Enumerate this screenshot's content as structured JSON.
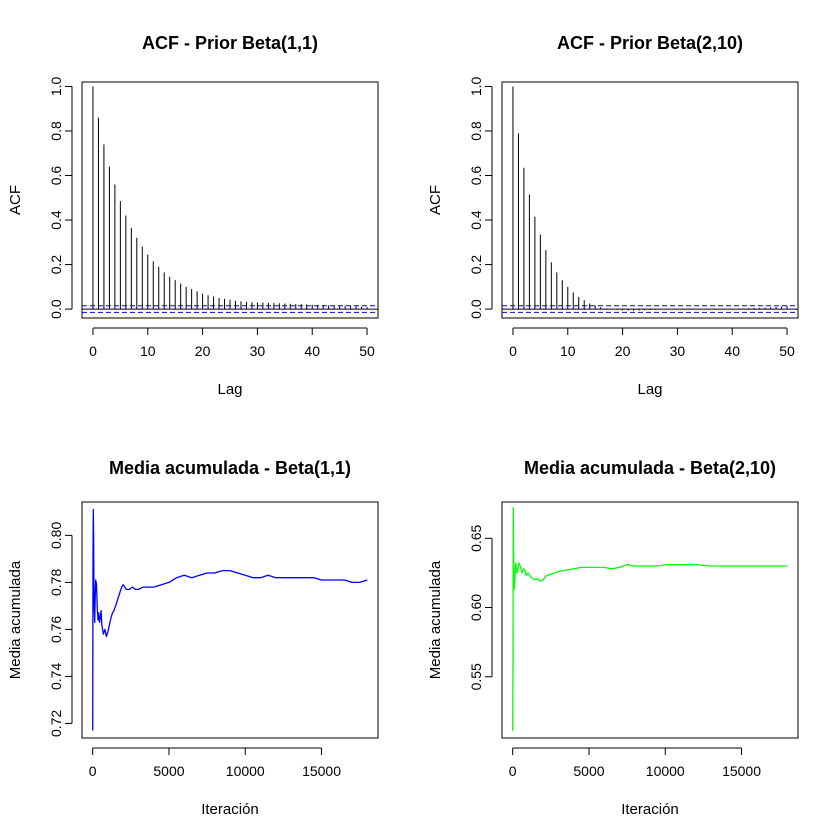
{
  "chart_data": [
    {
      "type": "bar",
      "title": "ACF - Prior Beta(1,1)",
      "xlabel": "Lag",
      "ylabel": "ACF",
      "xlim": [
        -2,
        52
      ],
      "ylim": [
        -0.04,
        1.02
      ],
      "xticks": [
        0,
        10,
        20,
        30,
        40,
        50
      ],
      "yticks": [
        0.0,
        0.2,
        0.4,
        0.6,
        0.8,
        1.0
      ],
      "ytick_labels": [
        "0.0",
        "0.2",
        "0.4",
        "0.6",
        "0.8",
        "1.0"
      ],
      "confidence_bound": 0.015,
      "bound_color": "#0000ff",
      "bar_color": "#000000",
      "lags": [
        0,
        1,
        2,
        3,
        4,
        5,
        6,
        7,
        8,
        9,
        10,
        11,
        12,
        13,
        14,
        15,
        16,
        17,
        18,
        19,
        20,
        21,
        22,
        23,
        24,
        25,
        26,
        27,
        28,
        29,
        30,
        31,
        32,
        33,
        34,
        35,
        36,
        37,
        38,
        39,
        40,
        41,
        42,
        43,
        44,
        45,
        46,
        47,
        48,
        49,
        50
      ],
      "values": [
        1.0,
        0.86,
        0.74,
        0.64,
        0.56,
        0.485,
        0.42,
        0.365,
        0.32,
        0.28,
        0.245,
        0.215,
        0.19,
        0.165,
        0.145,
        0.13,
        0.115,
        0.1,
        0.09,
        0.08,
        0.07,
        0.062,
        0.056,
        0.05,
        0.046,
        0.042,
        0.038,
        0.035,
        0.033,
        0.031,
        0.03,
        0.029,
        0.028,
        0.027,
        0.026,
        0.025,
        0.024,
        0.023,
        0.022,
        0.021,
        0.02,
        0.019,
        0.018,
        0.017,
        0.016,
        0.015,
        0.014,
        0.013,
        0.012,
        0.011,
        0.01
      ]
    },
    {
      "type": "bar",
      "title": "ACF - Prior Beta(2,10)",
      "xlabel": "Lag",
      "ylabel": "ACF",
      "xlim": [
        -2,
        52
      ],
      "ylim": [
        -0.04,
        1.02
      ],
      "xticks": [
        0,
        10,
        20,
        30,
        40,
        50
      ],
      "yticks": [
        0.0,
        0.2,
        0.4,
        0.6,
        0.8,
        1.0
      ],
      "ytick_labels": [
        "0.0",
        "0.2",
        "0.4",
        "0.6",
        "0.8",
        "1.0"
      ],
      "confidence_bound": 0.015,
      "bound_color": "#0000ff",
      "bar_color": "#000000",
      "lags": [
        0,
        1,
        2,
        3,
        4,
        5,
        6,
        7,
        8,
        9,
        10,
        11,
        12,
        13,
        14,
        15,
        16,
        17,
        18,
        19,
        20,
        21,
        22,
        23,
        24,
        25,
        26,
        27,
        28,
        29,
        30,
        31,
        32,
        33,
        34,
        35,
        36,
        37,
        38,
        39,
        40,
        41,
        42,
        43,
        44,
        45,
        46,
        47,
        48,
        49,
        50
      ],
      "values": [
        1.0,
        0.79,
        0.635,
        0.515,
        0.415,
        0.335,
        0.265,
        0.21,
        0.165,
        0.13,
        0.1,
        0.075,
        0.055,
        0.04,
        0.025,
        0.015,
        0.008,
        0.003,
        0.0,
        -0.003,
        -0.005,
        -0.006,
        -0.007,
        -0.006,
        -0.005,
        -0.004,
        -0.003,
        -0.002,
        -0.001,
        0.0,
        0.001,
        0.002,
        0.002,
        0.001,
        0.0,
        -0.001,
        -0.002,
        -0.002,
        -0.001,
        0.0,
        0.001,
        0.002,
        0.003,
        0.004,
        0.005,
        0.006,
        0.007,
        0.008,
        0.01,
        0.012,
        0.014
      ]
    },
    {
      "type": "line",
      "title": "Media acumulada - Beta(1,1)",
      "xlabel": "Iteración",
      "ylabel": "Media acumulada",
      "xlim": [
        -700,
        18700
      ],
      "ylim": [
        0.7138,
        0.8142
      ],
      "xticks": [
        0,
        5000,
        10000,
        15000
      ],
      "yticks": [
        0.72,
        0.74,
        0.76,
        0.78,
        0.8
      ],
      "ytick_labels": [
        "0.72",
        "0.74",
        "0.76",
        "0.78",
        "0.80"
      ],
      "line_color": "#0000ff",
      "x": [
        0,
        20,
        40,
        60,
        80,
        100,
        130,
        160,
        200,
        250,
        300,
        350,
        400,
        450,
        500,
        550,
        600,
        700,
        800,
        900,
        1000,
        1100,
        1200,
        1300,
        1400,
        1500,
        1600,
        1700,
        1800,
        1900,
        2000,
        2200,
        2400,
        2600,
        2800,
        3000,
        3300,
        3600,
        4000,
        4500,
        5000,
        5500,
        6000,
        6500,
        7000,
        7500,
        8000,
        8500,
        9000,
        9500,
        10000,
        10500,
        11000,
        11500,
        12000,
        12500,
        13000,
        13500,
        14000,
        14500,
        15000,
        15500,
        16000,
        16500,
        17000,
        17500,
        18000
      ],
      "values": [
        0.717,
        0.79,
        0.811,
        0.8,
        0.78,
        0.77,
        0.763,
        0.772,
        0.781,
        0.779,
        0.769,
        0.764,
        0.767,
        0.763,
        0.765,
        0.768,
        0.762,
        0.758,
        0.76,
        0.757,
        0.759,
        0.762,
        0.765,
        0.767,
        0.768,
        0.77,
        0.772,
        0.774,
        0.776,
        0.778,
        0.779,
        0.777,
        0.777,
        0.778,
        0.777,
        0.777,
        0.778,
        0.778,
        0.778,
        0.779,
        0.78,
        0.782,
        0.783,
        0.782,
        0.783,
        0.784,
        0.784,
        0.785,
        0.785,
        0.784,
        0.783,
        0.782,
        0.782,
        0.783,
        0.782,
        0.782,
        0.782,
        0.782,
        0.782,
        0.782,
        0.781,
        0.781,
        0.781,
        0.781,
        0.78,
        0.78,
        0.781
      ]
    },
    {
      "type": "line",
      "title": "Media acumulada - Beta(2,10)",
      "xlabel": "Iteración",
      "ylabel": "Media acumulada",
      "xlim": [
        -700,
        18700
      ],
      "ylim": [
        0.5058,
        0.6762
      ],
      "xticks": [
        0,
        5000,
        10000,
        15000
      ],
      "yticks": [
        0.55,
        0.6,
        0.65
      ],
      "ytick_labels": [
        "0.55",
        "0.60",
        "0.65"
      ],
      "line_color": "#00ff00",
      "x": [
        0,
        20,
        40,
        60,
        80,
        100,
        150,
        200,
        250,
        300,
        400,
        500,
        600,
        700,
        800,
        900,
        1000,
        1200,
        1400,
        1600,
        1800,
        2000,
        2200,
        2500,
        3000,
        3500,
        4000,
        4500,
        5000,
        5500,
        6000,
        6500,
        7000,
        7500,
        8000,
        8500,
        9000,
        9500,
        10000,
        11000,
        12000,
        13000,
        14000,
        15000,
        16000,
        17000,
        18000
      ],
      "values": [
        0.511,
        0.56,
        0.672,
        0.64,
        0.62,
        0.613,
        0.622,
        0.632,
        0.628,
        0.625,
        0.632,
        0.63,
        0.625,
        0.628,
        0.627,
        0.623,
        0.625,
        0.622,
        0.62,
        0.621,
        0.619,
        0.62,
        0.623,
        0.624,
        0.626,
        0.627,
        0.628,
        0.629,
        0.629,
        0.629,
        0.629,
        0.628,
        0.629,
        0.631,
        0.63,
        0.63,
        0.63,
        0.63,
        0.631,
        0.631,
        0.631,
        0.63,
        0.63,
        0.63,
        0.63,
        0.63,
        0.63
      ]
    }
  ]
}
